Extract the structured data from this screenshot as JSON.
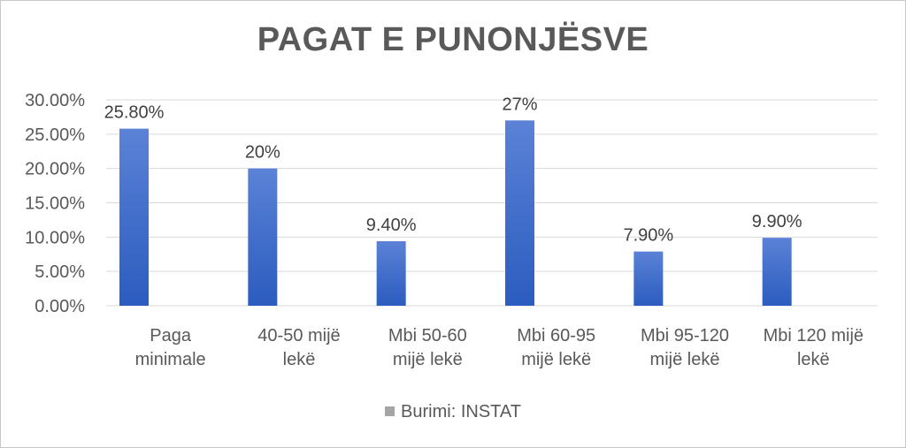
{
  "chart_data": {
    "type": "bar",
    "title": "PAGAT E PUNONJËSVE",
    "categories": [
      [
        "Paga",
        "minimale"
      ],
      [
        "40-50 mijë",
        "lekë"
      ],
      [
        "Mbi 50-60",
        "mijë lekë"
      ],
      [
        "Mbi 60-95",
        "mijë lekë"
      ],
      [
        "Mbi 95-120",
        "mijë lekë"
      ],
      [
        "Mbi 120  mijë",
        "lekë"
      ]
    ],
    "series": [
      {
        "name": "Burimi: INSTAT",
        "values": [
          25.8,
          20,
          9.4,
          27,
          7.9,
          9.9
        ],
        "labels": [
          "25.80%",
          "20%",
          "9.40%",
          "27%",
          "7.90%",
          "9.90%"
        ]
      }
    ],
    "ylim": [
      0,
      30
    ],
    "yticks": [
      "0.00%",
      "5.00%",
      "10.00%",
      "15.00%",
      "20.00%",
      "25.00%",
      "30.00%"
    ],
    "grid": true,
    "legend_position": "bottom",
    "colors": {
      "bar_top": "#5b82d6",
      "bar_bottom": "#2b5cbf",
      "grid": "#d9d9d9",
      "text": "#595959",
      "legend_swatch": "#a5a5a5"
    }
  }
}
